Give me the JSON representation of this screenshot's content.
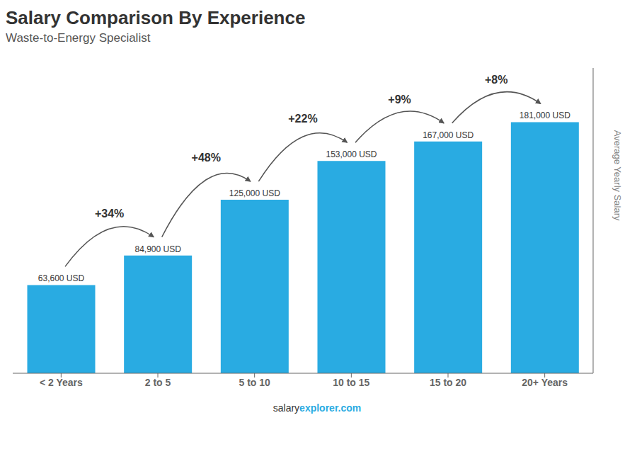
{
  "chart_data": {
    "type": "bar",
    "title": "Salary Comparison By Experience",
    "subtitle": "Waste-to-Energy Specialist",
    "ylabel": "Average Yearly Salary",
    "categories": [
      "< 2 Years",
      "2 to 5",
      "5 to 10",
      "10 to 15",
      "15 to 20",
      "20+ Years"
    ],
    "values": [
      63600,
      84900,
      125000,
      153000,
      167000,
      181000
    ],
    "value_labels": [
      "63,600 USD",
      "84,900 USD",
      "125,000 USD",
      "153,000 USD",
      "167,000 USD",
      "181,000 USD"
    ],
    "data_labels": true,
    "change_labels": [
      "+34%",
      "+48%",
      "+22%",
      "+9%",
      "+8%"
    ],
    "annotations": [
      "salary",
      "explorer.com"
    ],
    "color": "#29abe2",
    "ylim": [
      0,
      220000
    ],
    "grid": false,
    "tick_labels": "x"
  }
}
